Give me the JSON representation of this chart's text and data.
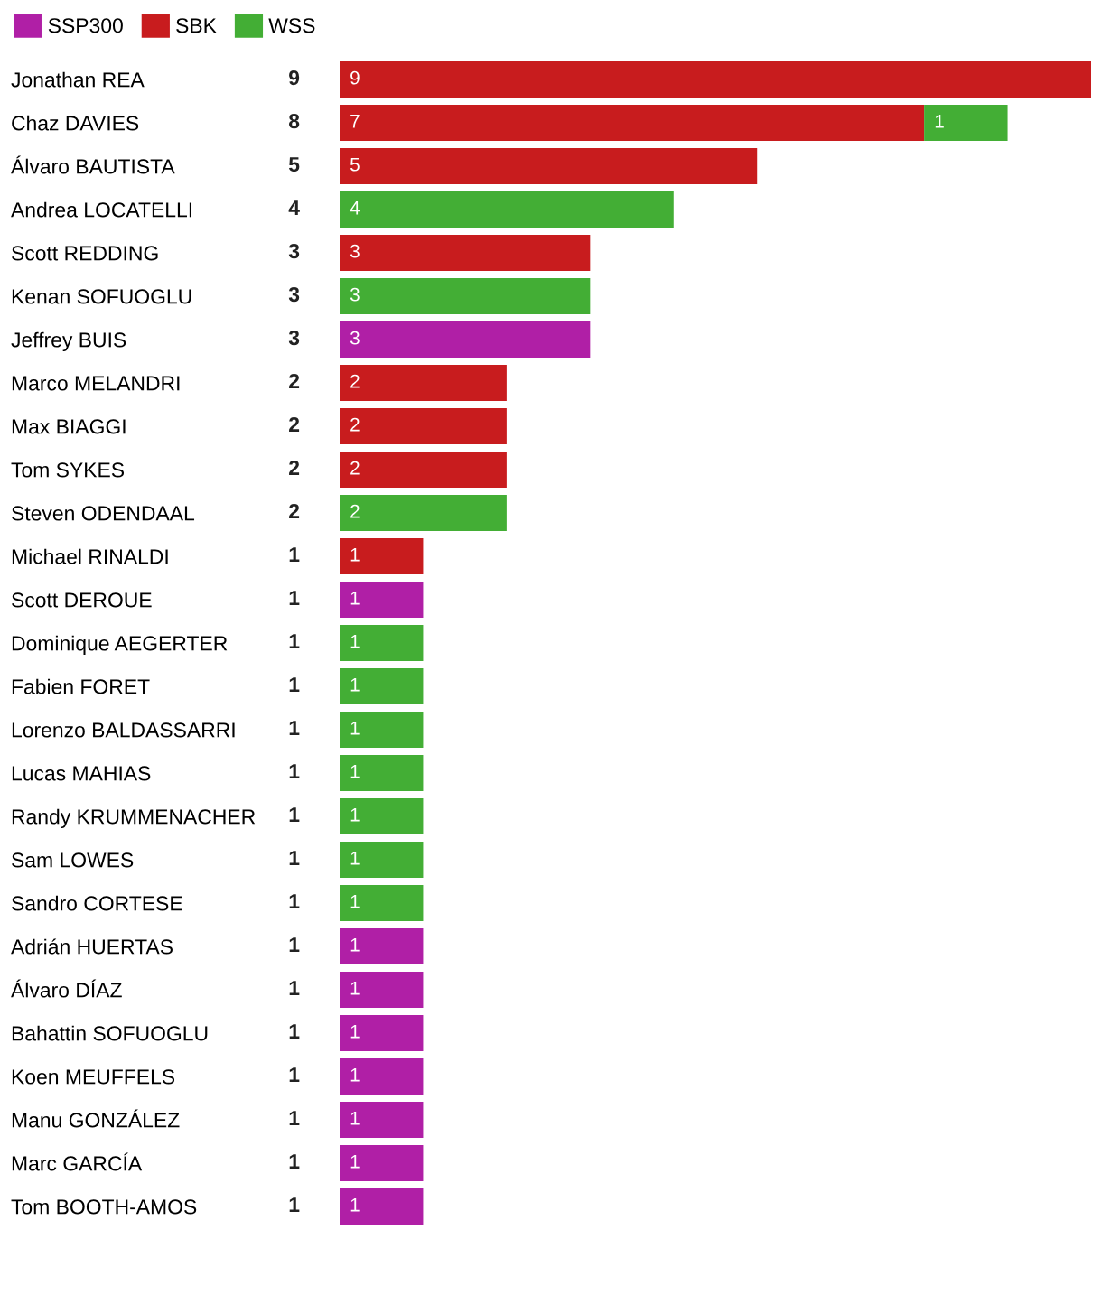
{
  "chart_data": {
    "type": "bar",
    "orientation": "horizontal",
    "stacked": true,
    "data_labels": true,
    "legend": "top left",
    "grid": false,
    "tick_labels": "y",
    "xlim": [
      0,
      9
    ],
    "categories": [
      "Jonathan REA",
      "Chaz DAVIES",
      "Álvaro BAUTISTA",
      "Andrea LOCATELLI",
      "Scott REDDING",
      "Kenan SOFUOGLU",
      "Jeffrey BUIS",
      "Marco MELANDRI",
      "Max BIAGGI",
      "Tom SYKES",
      "Steven ODENDAAL",
      "Michael RINALDI",
      "Scott DEROUE",
      "Dominique AEGERTER",
      "Fabien FORET",
      "Lorenzo BALDASSARRI",
      "Lucas MAHIAS",
      "Randy KRUMMENACHER",
      "Sam LOWES",
      "Sandro CORTESE",
      "Adrián HUERTAS",
      "Álvaro DÍAZ",
      "Bahattin SOFUOGLU",
      "Koen MEUFFELS",
      "Manu GONZÁLEZ",
      "Marc GARCÍA",
      "Tom BOOTH-AMOS"
    ],
    "series": [
      {
        "name": "SSP300",
        "color": "#b01fa6",
        "values": [
          null,
          null,
          null,
          null,
          null,
          null,
          3,
          null,
          null,
          null,
          null,
          null,
          1,
          null,
          null,
          null,
          null,
          null,
          null,
          null,
          1,
          1,
          1,
          1,
          1,
          1,
          1
        ]
      },
      {
        "name": "SBK",
        "color": "#c81c1e",
        "values": [
          9,
          7,
          5,
          null,
          3,
          null,
          null,
          2,
          2,
          2,
          null,
          1,
          null,
          null,
          null,
          null,
          null,
          null,
          null,
          null,
          null,
          null,
          null,
          null,
          null,
          null,
          null
        ]
      },
      {
        "name": "WSS",
        "color": "#43ae35",
        "values": [
          null,
          1,
          null,
          4,
          null,
          3,
          null,
          null,
          null,
          null,
          2,
          null,
          null,
          1,
          1,
          1,
          1,
          1,
          1,
          1,
          null,
          null,
          null,
          null,
          null,
          null,
          null
        ]
      }
    ],
    "totals": [
      "9",
      "8",
      "5",
      "4",
      "3",
      "3",
      "3",
      "2",
      "2",
      "2",
      "2",
      "1",
      "1",
      "1",
      "1",
      "1",
      "1",
      "1",
      "1",
      "1",
      "1",
      "1",
      "1",
      "1",
      "1",
      "1",
      "1"
    ]
  }
}
